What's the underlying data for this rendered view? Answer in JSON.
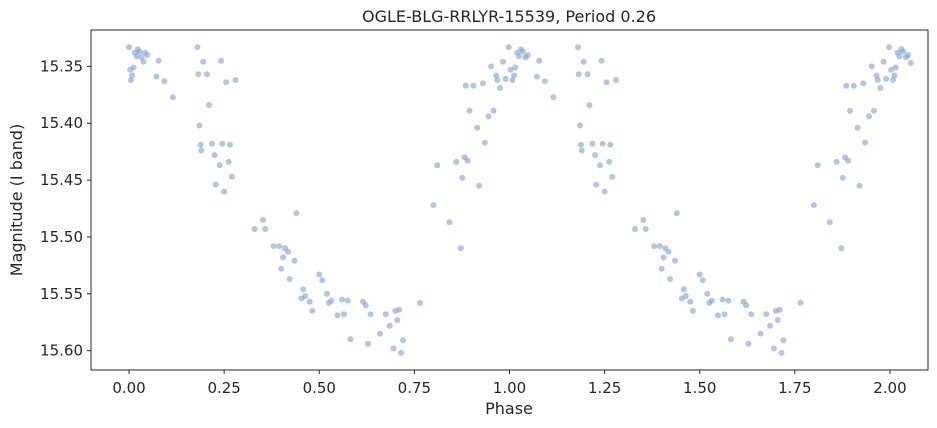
{
  "chart_data": {
    "type": "scatter",
    "title": "OGLE-BLG-RRLYR-15539, Period 0.26",
    "xlabel": "Phase",
    "ylabel": "Magnitude (I band)",
    "xlim": [
      -0.1,
      2.1
    ],
    "ylim": [
      15.617,
      15.318
    ],
    "y_inverted": true,
    "grid": false,
    "point_color": "#7f9fce",
    "point_opacity": 0.6,
    "xticks": [
      0.0,
      0.25,
      0.5,
      0.75,
      1.0,
      1.25,
      1.5,
      1.75,
      2.0
    ],
    "xtick_labels": [
      "0.00",
      "0.25",
      "0.50",
      "0.75",
      "1.00",
      "1.25",
      "1.50",
      "1.75",
      "2.00"
    ],
    "yticks": [
      15.35,
      15.4,
      15.45,
      15.5,
      15.55,
      15.6
    ],
    "ytick_labels": [
      "15.35",
      "15.40",
      "15.45",
      "15.50",
      "15.55",
      "15.60"
    ],
    "points": [
      [
        0.0,
        15.333
      ],
      [
        0.003,
        15.353
      ],
      [
        0.005,
        15.362
      ],
      [
        0.008,
        15.358
      ],
      [
        0.012,
        15.351
      ],
      [
        0.015,
        15.338
      ],
      [
        0.02,
        15.341
      ],
      [
        0.023,
        15.335
      ],
      [
        0.028,
        15.337
      ],
      [
        0.033,
        15.342
      ],
      [
        0.038,
        15.346
      ],
      [
        0.042,
        15.338
      ],
      [
        0.048,
        15.34
      ],
      [
        0.072,
        15.359
      ],
      [
        0.078,
        15.345
      ],
      [
        0.093,
        15.363
      ],
      [
        0.115,
        15.377
      ],
      [
        0.18,
        15.333
      ],
      [
        0.182,
        15.357
      ],
      [
        0.185,
        15.402
      ],
      [
        0.188,
        15.419
      ],
      [
        0.19,
        15.424
      ],
      [
        0.195,
        15.346
      ],
      [
        0.205,
        15.357
      ],
      [
        0.21,
        15.384
      ],
      [
        0.218,
        15.418
      ],
      [
        0.225,
        15.428
      ],
      [
        0.228,
        15.454
      ],
      [
        0.238,
        15.437
      ],
      [
        0.242,
        15.345
      ],
      [
        0.245,
        15.418
      ],
      [
        0.25,
        15.46
      ],
      [
        0.255,
        15.364
      ],
      [
        0.262,
        15.434
      ],
      [
        0.265,
        15.419
      ],
      [
        0.27,
        15.447
      ],
      [
        0.28,
        15.362
      ],
      [
        0.33,
        15.493
      ],
      [
        0.352,
        15.485
      ],
      [
        0.358,
        15.493
      ],
      [
        0.38,
        15.508
      ],
      [
        0.395,
        15.508
      ],
      [
        0.4,
        15.528
      ],
      [
        0.405,
        15.518
      ],
      [
        0.41,
        15.51
      ],
      [
        0.418,
        15.513
      ],
      [
        0.422,
        15.537
      ],
      [
        0.435,
        15.521
      ],
      [
        0.44,
        15.479
      ],
      [
        0.453,
        15.554
      ],
      [
        0.458,
        15.546
      ],
      [
        0.463,
        15.552
      ],
      [
        0.475,
        15.557
      ],
      [
        0.482,
        15.565
      ],
      [
        0.5,
        15.533
      ],
      [
        0.508,
        15.538
      ],
      [
        0.52,
        15.55
      ],
      [
        0.525,
        15.558
      ],
      [
        0.532,
        15.556
      ],
      [
        0.548,
        15.569
      ],
      [
        0.56,
        15.555
      ],
      [
        0.565,
        15.568
      ],
      [
        0.575,
        15.556
      ],
      [
        0.582,
        15.59
      ],
      [
        0.615,
        15.557
      ],
      [
        0.622,
        15.56
      ],
      [
        0.628,
        15.594
      ],
      [
        0.635,
        15.568
      ],
      [
        0.66,
        15.585
      ],
      [
        0.675,
        15.568
      ],
      [
        0.685,
        15.578
      ],
      [
        0.695,
        15.598
      ],
      [
        0.7,
        15.565
      ],
      [
        0.705,
        15.573
      ],
      [
        0.71,
        15.564
      ],
      [
        0.715,
        15.602
      ],
      [
        0.72,
        15.591
      ],
      [
        0.765,
        15.558
      ],
      [
        0.8,
        15.472
      ],
      [
        0.81,
        15.437
      ],
      [
        0.842,
        15.487
      ],
      [
        0.86,
        15.434
      ],
      [
        0.872,
        15.51
      ],
      [
        0.876,
        15.448
      ],
      [
        0.882,
        15.43
      ],
      [
        0.885,
        15.367
      ],
      [
        0.89,
        15.433
      ],
      [
        0.895,
        15.389
      ],
      [
        0.905,
        15.367
      ],
      [
        0.915,
        15.404
      ],
      [
        0.92,
        15.455
      ],
      [
        0.93,
        15.365
      ],
      [
        0.935,
        15.417
      ],
      [
        0.945,
        15.394
      ],
      [
        0.952,
        15.35
      ],
      [
        0.958,
        15.389
      ],
      [
        0.965,
        15.358
      ],
      [
        0.968,
        15.362
      ],
      [
        0.975,
        15.369
      ],
      [
        0.983,
        15.346
      ],
      [
        0.99,
        15.361
      ],
      [
        0.998,
        15.333
      ],
      [
        1.003,
        15.353
      ],
      [
        1.008,
        15.362
      ],
      [
        1.012,
        15.358
      ],
      [
        1.015,
        15.351
      ],
      [
        1.02,
        15.338
      ],
      [
        1.025,
        15.341
      ],
      [
        1.03,
        15.335
      ],
      [
        1.035,
        15.337
      ],
      [
        1.042,
        15.342
      ],
      [
        1.048,
        15.34
      ],
      [
        1.072,
        15.359
      ],
      [
        1.078,
        15.345
      ],
      [
        1.093,
        15.363
      ],
      [
        1.115,
        15.377
      ],
      [
        1.18,
        15.333
      ],
      [
        1.182,
        15.357
      ],
      [
        1.185,
        15.402
      ],
      [
        1.188,
        15.419
      ],
      [
        1.19,
        15.424
      ],
      [
        1.195,
        15.346
      ],
      [
        1.205,
        15.357
      ],
      [
        1.21,
        15.384
      ],
      [
        1.218,
        15.418
      ],
      [
        1.225,
        15.428
      ],
      [
        1.228,
        15.454
      ],
      [
        1.238,
        15.437
      ],
      [
        1.242,
        15.345
      ],
      [
        1.245,
        15.418
      ],
      [
        1.25,
        15.46
      ],
      [
        1.255,
        15.364
      ],
      [
        1.262,
        15.434
      ],
      [
        1.265,
        15.419
      ],
      [
        1.27,
        15.447
      ],
      [
        1.28,
        15.362
      ],
      [
        1.33,
        15.493
      ],
      [
        1.352,
        15.485
      ],
      [
        1.358,
        15.493
      ],
      [
        1.38,
        15.508
      ],
      [
        1.395,
        15.508
      ],
      [
        1.4,
        15.528
      ],
      [
        1.405,
        15.518
      ],
      [
        1.41,
        15.51
      ],
      [
        1.418,
        15.513
      ],
      [
        1.422,
        15.537
      ],
      [
        1.435,
        15.521
      ],
      [
        1.44,
        15.479
      ],
      [
        1.453,
        15.554
      ],
      [
        1.458,
        15.546
      ],
      [
        1.463,
        15.552
      ],
      [
        1.475,
        15.557
      ],
      [
        1.482,
        15.565
      ],
      [
        1.5,
        15.533
      ],
      [
        1.508,
        15.538
      ],
      [
        1.52,
        15.55
      ],
      [
        1.525,
        15.558
      ],
      [
        1.532,
        15.556
      ],
      [
        1.548,
        15.569
      ],
      [
        1.56,
        15.555
      ],
      [
        1.565,
        15.568
      ],
      [
        1.575,
        15.556
      ],
      [
        1.582,
        15.59
      ],
      [
        1.615,
        15.557
      ],
      [
        1.622,
        15.56
      ],
      [
        1.628,
        15.594
      ],
      [
        1.635,
        15.568
      ],
      [
        1.66,
        15.585
      ],
      [
        1.675,
        15.568
      ],
      [
        1.685,
        15.578
      ],
      [
        1.695,
        15.598
      ],
      [
        1.7,
        15.565
      ],
      [
        1.705,
        15.573
      ],
      [
        1.71,
        15.564
      ],
      [
        1.715,
        15.602
      ],
      [
        1.72,
        15.591
      ],
      [
        1.765,
        15.558
      ],
      [
        1.8,
        15.472
      ],
      [
        1.81,
        15.437
      ],
      [
        1.842,
        15.487
      ],
      [
        1.86,
        15.434
      ],
      [
        1.872,
        15.51
      ],
      [
        1.876,
        15.448
      ],
      [
        1.882,
        15.43
      ],
      [
        1.885,
        15.367
      ],
      [
        1.89,
        15.433
      ],
      [
        1.895,
        15.389
      ],
      [
        1.905,
        15.367
      ],
      [
        1.915,
        15.404
      ],
      [
        1.92,
        15.455
      ],
      [
        1.93,
        15.365
      ],
      [
        1.935,
        15.417
      ],
      [
        1.945,
        15.394
      ],
      [
        1.952,
        15.35
      ],
      [
        1.958,
        15.389
      ],
      [
        1.965,
        15.358
      ],
      [
        1.968,
        15.362
      ],
      [
        1.975,
        15.369
      ],
      [
        1.983,
        15.346
      ],
      [
        1.99,
        15.361
      ],
      [
        1.998,
        15.333
      ],
      [
        2.003,
        15.353
      ],
      [
        2.008,
        15.362
      ],
      [
        2.012,
        15.358
      ],
      [
        2.015,
        15.351
      ],
      [
        2.02,
        15.338
      ],
      [
        2.025,
        15.341
      ],
      [
        2.03,
        15.335
      ],
      [
        2.035,
        15.337
      ],
      [
        2.042,
        15.342
      ],
      [
        2.048,
        15.34
      ],
      [
        2.055,
        15.347
      ]
    ]
  }
}
